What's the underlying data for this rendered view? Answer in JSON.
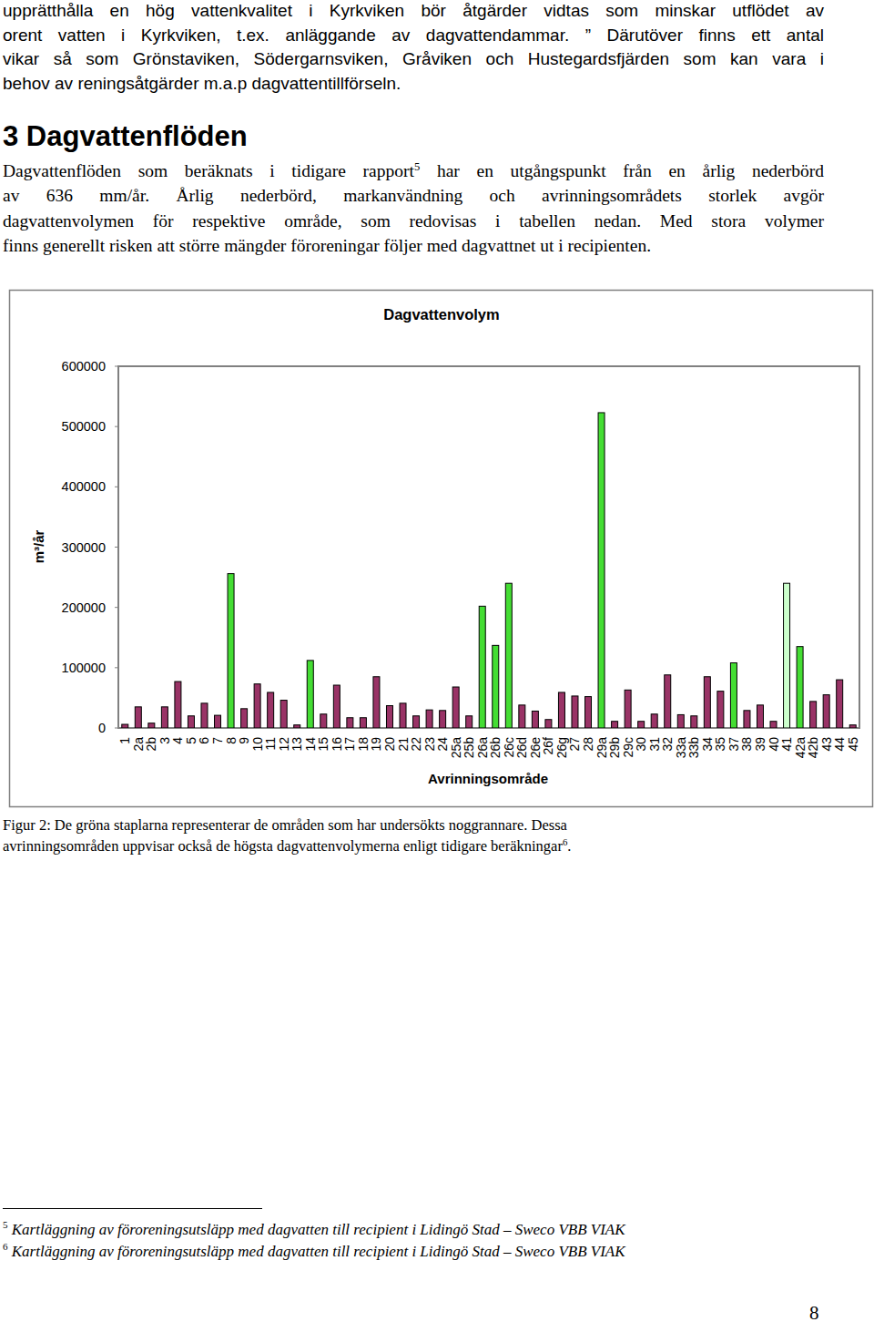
{
  "page": {
    "intro_lines": [
      "upprätthålla en hög vattenkvalitet i Kyrkviken bör åtgärder vidtas som minskar utflödet av",
      "orent vatten i Kyrkviken, t.ex. anläggande av dagvattendammar. ” Därutöver finns ett antal",
      "vikar så som Grönstaviken, Södergarnsviken, Gråviken och Hustegardsfjärden som kan vara i",
      "behov av reningsåtgärder m.a.p dagvattentillförseln."
    ],
    "heading": "3 Dagvattenflöden",
    "section_lines": [
      {
        "before": "Dagvattenflöden som beräknats i tidigare rapport",
        "sup": "5",
        "after": " har en utgångspunkt från en årlig nederbörd"
      },
      "av 636 mm/år. Årlig nederbörd, markanvändning och avrinningsområdets storlek avgör",
      "dagvattenvolymen för respektive område, som redovisas i tabellen nedan. Med stora volymer",
      "finns generellt risken att större mängder föroreningar följer med dagvattnet ut i recipienten."
    ],
    "caption_lines": [
      "Figur 2: De gröna staplarna representerar de områden som har undersökts noggrannare. Dessa",
      {
        "before": "avrinningsområden uppvisar också de högsta dagvattenvolymerna enligt tidigare beräkningar",
        "sup": "6",
        "after": "."
      }
    ],
    "footnotes": [
      {
        "mark": "5",
        "text": "Kartläggning av föroreningsutsläpp med dagvatten till recipient i Lidingö Stad – Sweco VBB VIAK"
      },
      {
        "mark": "6",
        "text": "Kartläggning av föroreningsutsläpp med dagvatten till recipient i Lidingö Stad – Sweco VBB VIAK"
      }
    ],
    "page_number": "8"
  },
  "chart_data": {
    "type": "bar",
    "title": "Dagvattenvolym",
    "y_label": "m³/år",
    "x_label": "Avrinningsområde",
    "categories": [
      "1",
      "2a",
      "2b",
      "3",
      "4",
      "5",
      "6",
      "7",
      "8",
      "9",
      "10",
      "11",
      "12",
      "13",
      "14",
      "15",
      "16",
      "17",
      "18",
      "19",
      "20",
      "21",
      "22",
      "23",
      "24",
      "25a",
      "25b",
      "26a",
      "26b",
      "26c",
      "26d",
      "26e",
      "26f",
      "26g",
      "27",
      "28",
      "29a",
      "29b",
      "29c",
      "30",
      "31",
      "32",
      "33a",
      "33b",
      "34",
      "35",
      "37",
      "38",
      "39",
      "40",
      "41",
      "42a",
      "42b",
      "43",
      "44",
      "45"
    ],
    "values": [
      6000,
      35000,
      8000,
      35000,
      77000,
      20000,
      41000,
      21000,
      256000,
      32000,
      73000,
      59000,
      46000,
      5000,
      112000,
      23000,
      71000,
      17000,
      17000,
      85000,
      37000,
      41000,
      20000,
      30000,
      29000,
      68000,
      20000,
      202000,
      137000,
      240000,
      38000,
      28000,
      14000,
      59000,
      53000,
      52000,
      523000,
      11000,
      63000,
      11000,
      23000,
      88000,
      22000,
      20000,
      85000,
      61000,
      108000,
      29000,
      38000,
      11000,
      240000,
      135000,
      44000,
      55000,
      80000,
      5000
    ],
    "colors": [
      "#993366",
      "#993366",
      "#993366",
      "#993366",
      "#993366",
      "#993366",
      "#993366",
      "#993366",
      "#44dd33",
      "#993366",
      "#993366",
      "#993366",
      "#993366",
      "#993366",
      "#44dd33",
      "#993366",
      "#993366",
      "#993366",
      "#993366",
      "#993366",
      "#993366",
      "#993366",
      "#993366",
      "#993366",
      "#993366",
      "#993366",
      "#993366",
      "#44dd33",
      "#44dd33",
      "#44dd33",
      "#993366",
      "#993366",
      "#993366",
      "#993366",
      "#993366",
      "#993366",
      "#44dd33",
      "#993366",
      "#993366",
      "#993366",
      "#993366",
      "#993366",
      "#993366",
      "#993366",
      "#993366",
      "#993366",
      "#44dd33",
      "#993366",
      "#993366",
      "#993366",
      "#ccffcc",
      "#44dd33",
      "#993366",
      "#993366",
      "#993366",
      "#993366"
    ],
    "ylim": [
      0,
      600000
    ],
    "yticks": [
      0,
      100000,
      200000,
      300000,
      400000,
      500000,
      600000
    ],
    "grid": false
  }
}
